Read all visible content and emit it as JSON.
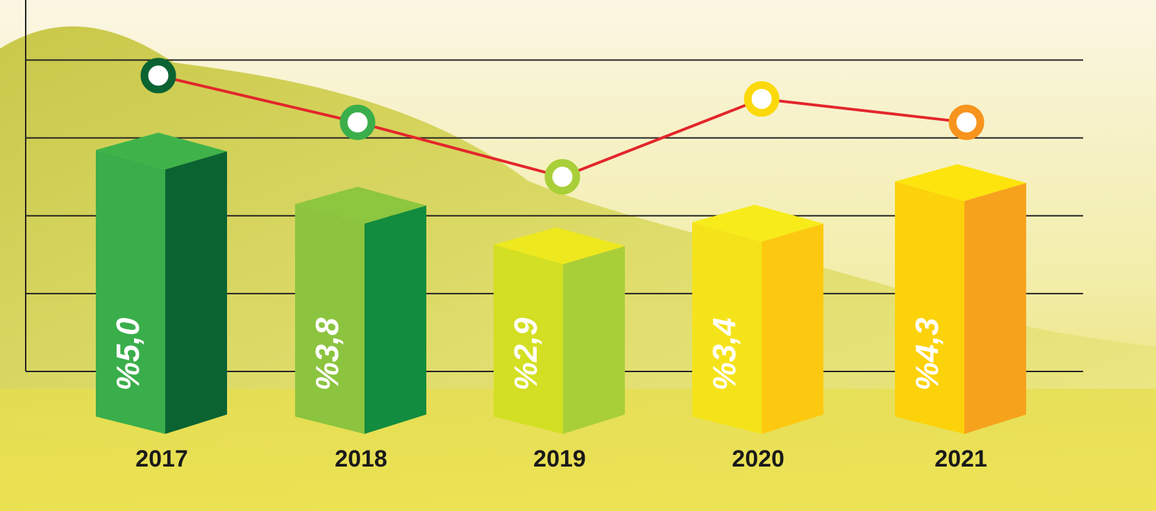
{
  "chart_data": {
    "type": "bar",
    "categories": [
      "2017",
      "2018",
      "2019",
      "2020",
      "2021"
    ],
    "values": [
      5.0,
      3.8,
      2.9,
      3.4,
      4.3
    ],
    "value_labels": [
      "%5,0",
      "%3,8",
      "%2,9",
      "%3,4",
      "%4,3"
    ],
    "front_colors": [
      "#3aae4a",
      "#8cc43f",
      "#d3df22",
      "#f5e31a",
      "#fcd20a"
    ],
    "side_colors": [
      "#0b6332",
      "#128c3e",
      "#a9cf38",
      "#fdc910",
      "#f7a21d"
    ],
    "top_colors": [
      "#3fb34a",
      "#8dc63f",
      "#eee81e",
      "#f7ec1a",
      "#fde40c"
    ],
    "line": {
      "color": "#e3262b",
      "values": [
        3.8,
        3.2,
        2.5,
        3.5,
        3.2
      ],
      "marker_colors": [
        "#0b6332",
        "#3aae4a",
        "#a9cf38",
        "#fbd90a",
        "#f7941d"
      ]
    },
    "ylim": [
      0,
      4.7
    ],
    "grid_lines": [
      0,
      1,
      2,
      3,
      4
    ],
    "grid": true
  }
}
